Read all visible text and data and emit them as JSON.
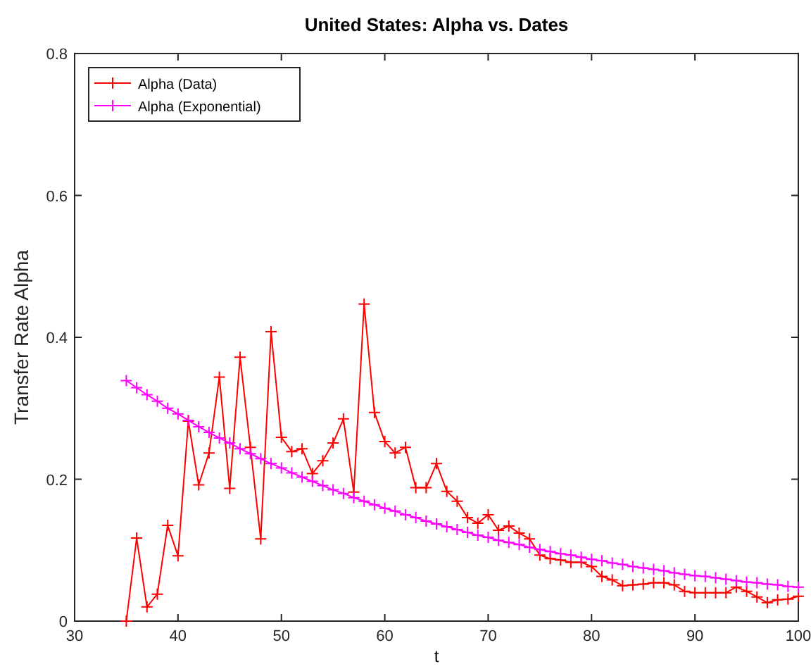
{
  "chart_data": {
    "type": "line",
    "title": "United States: Alpha vs. Dates",
    "xlabel": "t",
    "ylabel": "Transfer Rate Alpha",
    "x": [
      35,
      36,
      37,
      38,
      39,
      40,
      41,
      42,
      43,
      44,
      45,
      46,
      47,
      48,
      49,
      50,
      51,
      52,
      53,
      54,
      55,
      56,
      57,
      58,
      59,
      60,
      61,
      62,
      63,
      64,
      65,
      66,
      67,
      68,
      69,
      70,
      71,
      72,
      73,
      74,
      75,
      76,
      77,
      78,
      79,
      80,
      81,
      82,
      83,
      84,
      85,
      86,
      87,
      88,
      89,
      90,
      91,
      92,
      93,
      94,
      95,
      96,
      97,
      98,
      99,
      100
    ],
    "series": [
      {
        "name": "Alpha (Data)",
        "color": "#ff0000",
        "values": [
          0,
          0.117,
          0.02,
          0.038,
          0.135,
          0.092,
          0.282,
          0.192,
          0.237,
          0.344,
          0.187,
          0.372,
          0.245,
          0.116,
          0.408,
          0.259,
          0.239,
          0.243,
          0.208,
          0.226,
          0.251,
          0.285,
          0.182,
          0.447,
          0.294,
          0.253,
          0.237,
          0.245,
          0.188,
          0.188,
          0.222,
          0.183,
          0.169,
          0.146,
          0.138,
          0.15,
          0.128,
          0.134,
          0.124,
          0.116,
          0.093,
          0.088,
          0.086,
          0.083,
          0.083,
          0.077,
          0.063,
          0.058,
          0.05,
          0.051,
          0.052,
          0.054,
          0.054,
          0.051,
          0.042,
          0.04,
          0.04,
          0.04,
          0.04,
          0.048,
          0.042,
          0.034,
          0.026,
          0.03,
          0.031,
          0.035
        ]
      },
      {
        "name": "Alpha (Exponential)",
        "color": "#ff00ff",
        "values": [
          0.339,
          0.329,
          0.319,
          0.31,
          0.3,
          0.292,
          0.283,
          0.274,
          0.266,
          0.258,
          0.251,
          0.243,
          0.236,
          0.229,
          0.222,
          0.216,
          0.209,
          0.203,
          0.197,
          0.191,
          0.185,
          0.18,
          0.174,
          0.169,
          0.164,
          0.159,
          0.155,
          0.15,
          0.146,
          0.141,
          0.137,
          0.133,
          0.129,
          0.125,
          0.121,
          0.118,
          0.114,
          0.111,
          0.108,
          0.104,
          0.101,
          0.098,
          0.095,
          0.093,
          0.09,
          0.087,
          0.085,
          0.082,
          0.08,
          0.077,
          0.075,
          0.073,
          0.071,
          0.068,
          0.066,
          0.064,
          0.063,
          0.061,
          0.059,
          0.057,
          0.055,
          0.054,
          0.052,
          0.051,
          0.049,
          0.048
        ]
      }
    ],
    "xlim": [
      30,
      100
    ],
    "xticks": [
      30,
      40,
      50,
      60,
      70,
      80,
      90,
      100
    ],
    "ylim": [
      0,
      0.8
    ],
    "yticks": [
      0,
      0.2,
      0.4,
      0.6,
      0.8
    ],
    "legend": "top left",
    "marker": "cross",
    "line_style": "solid",
    "grid": false
  }
}
